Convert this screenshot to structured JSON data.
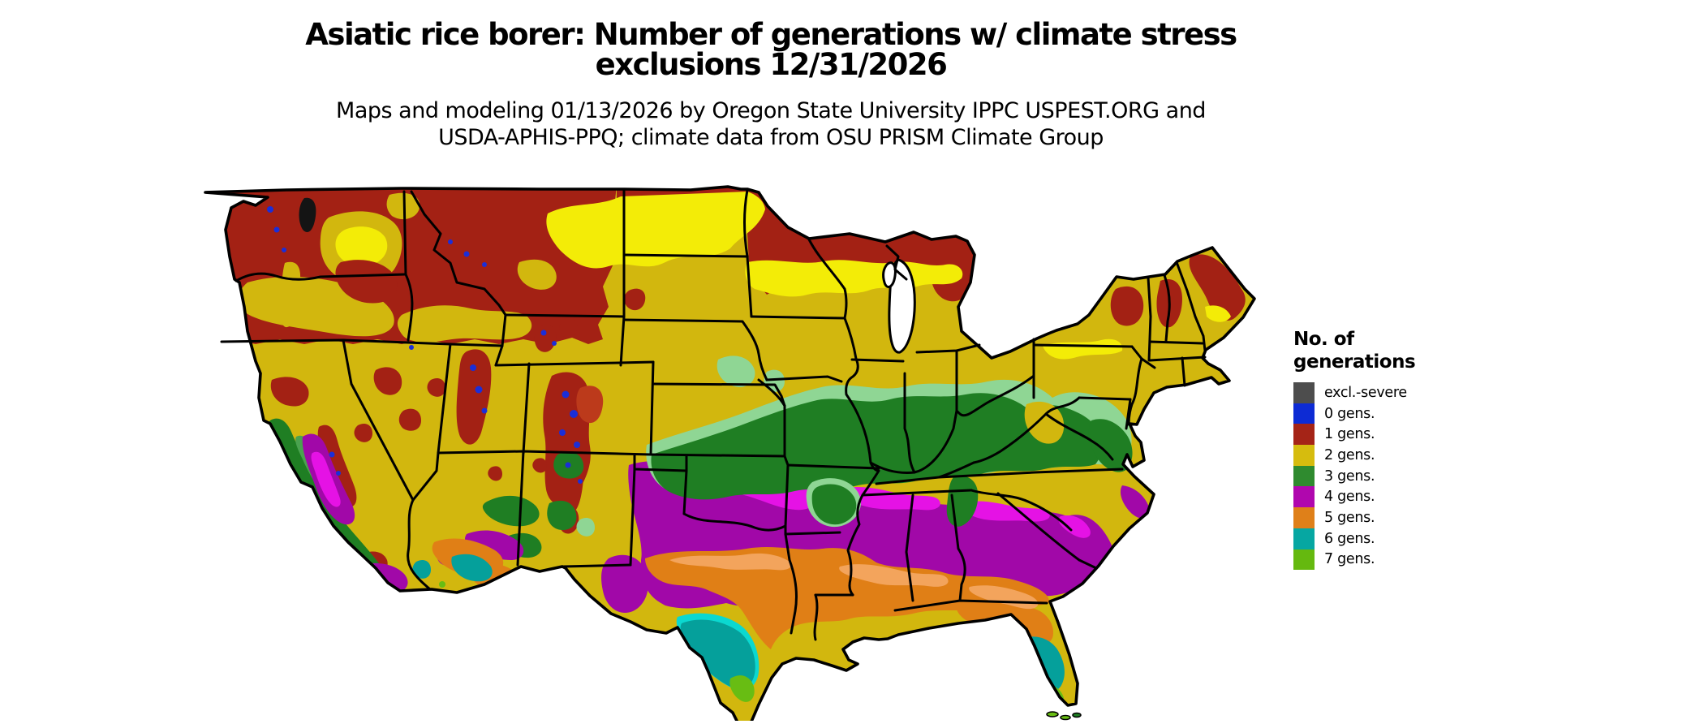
{
  "title": {
    "line1": "Asiatic rice borer: Number of generations w/ climate stress",
    "line2": "exclusions 12/31/2026"
  },
  "subtitle": {
    "line1": "Maps and modeling 01/13/2026 by Oregon State University IPPC USPEST.ORG and",
    "line2": "USDA-APHIS-PPQ; climate data from OSU PRISM Climate Group"
  },
  "legend": {
    "title_line1": "No. of",
    "title_line2": "generations",
    "items": [
      {
        "label": "excl.-severe",
        "color": "#4d4d4d"
      },
      {
        "label": "0 gens.",
        "color": "#0d2bd4"
      },
      {
        "label": "1 gens.",
        "color": "#a52417"
      },
      {
        "label": "2 gens.",
        "color": "#d6bc0e"
      },
      {
        "label": "3 gens.",
        "color": "#2f8b2f"
      },
      {
        "label": "4 gens.",
        "color": "#b007ae"
      },
      {
        "label": "5 gens.",
        "color": "#df8019"
      },
      {
        "label": "6 gens.",
        "color": "#06a7a2"
      },
      {
        "label": "7 gens.",
        "color": "#65b90f"
      }
    ]
  },
  "map": {
    "region": "Contiguous United States",
    "palette": {
      "one_gen": "#a32114",
      "two_gens": "#d2b70e",
      "two_gens_bright": "#f3ec07",
      "three_gens": "#1f7e23",
      "three_gens_light": "#8fd694",
      "four_gens": "#a108a8",
      "four_gens_bright": "#e512e5",
      "five_gens": "#e07f16",
      "five_gens_light": "#f3a45c",
      "six_gens": "#05a09b",
      "six_gens_bright": "#0bd8d0",
      "seven_gens": "#68bd13",
      "zero_gens": "#1b2ed8",
      "excl_severe": "#4d4d4d",
      "water": "#ffffff",
      "border": "#000000"
    }
  }
}
